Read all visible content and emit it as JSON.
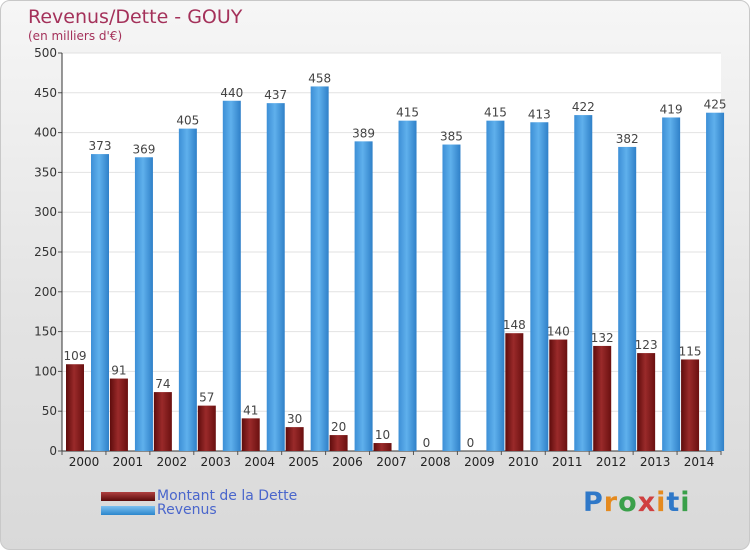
{
  "header": {
    "title": "Revenus/Dette - GOUY",
    "subtitle": "(en milliers d'€)"
  },
  "chart_data": {
    "type": "bar",
    "categories": [
      "2000",
      "2001",
      "2002",
      "2003",
      "2004",
      "2005",
      "2006",
      "2007",
      "2008",
      "2009",
      "2010",
      "2011",
      "2012",
      "2013",
      "2014"
    ],
    "series": [
      {
        "name": "Montant de la Dette",
        "color": "#7a1414",
        "values": [
          109,
          91,
          74,
          57,
          41,
          30,
          20,
          10,
          0,
          0,
          148,
          140,
          132,
          123,
          115
        ]
      },
      {
        "name": "Revenus",
        "color": "#4a9ee0",
        "values": [
          373,
          369,
          405,
          440,
          437,
          458,
          389,
          415,
          385,
          415,
          413,
          422,
          382,
          419,
          425
        ]
      }
    ],
    "ylim": [
      0,
      500
    ],
    "yticks": [
      0,
      50,
      100,
      150,
      200,
      250,
      300,
      350,
      400,
      450,
      500
    ],
    "grid": true,
    "legend_position": "bottom-left"
  },
  "legend": {
    "items": [
      {
        "label": "Montant de la Dette"
      },
      {
        "label": "Revenus"
      }
    ]
  },
  "logo": {
    "letters": [
      "P",
      "r",
      "o",
      "x",
      "i",
      "t",
      "i"
    ],
    "colors": [
      "#2f78c8",
      "#e58a1e",
      "#3aa04a",
      "#d04040",
      "#e58a1e",
      "#2f78c8",
      "#3aa04a"
    ]
  }
}
